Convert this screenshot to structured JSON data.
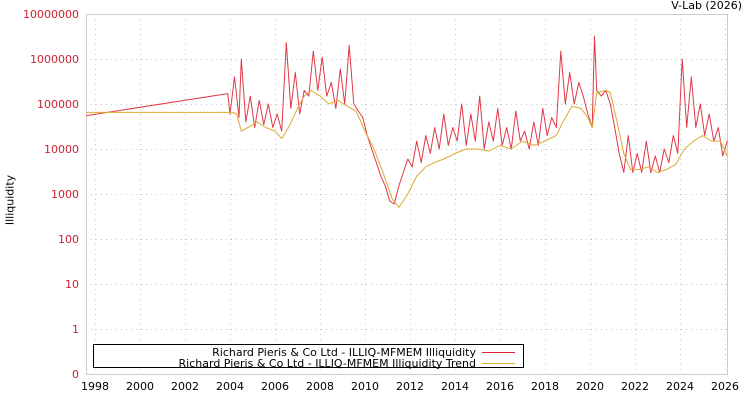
{
  "credit": "V-Lab (2026)",
  "y_axis_label": "Illiquidity",
  "legend": [
    {
      "label": "Richard Pieris & Co Ltd - ILLIQ-MFMEM Illiquidity",
      "color": "#dd2233"
    },
    {
      "label": "Richard Pieris & Co Ltd - ILLIQ-MFMEM Illiquidity Trend",
      "color": "#ddaa33"
    }
  ],
  "chart_data": {
    "type": "line",
    "title": "",
    "xlabel": "",
    "ylabel": "Illiquidity",
    "yscale": "log",
    "ylim": [
      0,
      10000000
    ],
    "xlim": [
      1997.6,
      2026.1
    ],
    "grid": true,
    "legend_position": "bottom-left inside",
    "y_ticks": [
      "0",
      "1",
      "10",
      "100",
      "1000",
      "10000",
      "100000",
      "1000000",
      "10000000"
    ],
    "x_ticks": [
      "1998",
      "2000",
      "2002",
      "2004",
      "2006",
      "2008",
      "2010",
      "2012",
      "2014",
      "2016",
      "2018",
      "2020",
      "2022",
      "2024",
      "2026"
    ],
    "series": [
      {
        "name": "Richard Pieris & Co Ltd - ILLIQ-MFMEM Illiquidity",
        "color": "#dd2233",
        "points": [
          [
            1997.6,
            55000
          ],
          [
            2003.9,
            170000
          ],
          [
            2004.0,
            60000
          ],
          [
            2004.2,
            400000
          ],
          [
            2004.4,
            50000
          ],
          [
            2004.5,
            1000000
          ],
          [
            2004.7,
            40000
          ],
          [
            2004.9,
            150000
          ],
          [
            2005.1,
            30000
          ],
          [
            2005.3,
            120000
          ],
          [
            2005.5,
            35000
          ],
          [
            2005.7,
            100000
          ],
          [
            2005.9,
            30000
          ],
          [
            2006.1,
            60000
          ],
          [
            2006.3,
            25000
          ],
          [
            2006.5,
            2300000
          ],
          [
            2006.7,
            80000
          ],
          [
            2006.9,
            500000
          ],
          [
            2007.1,
            60000
          ],
          [
            2007.3,
            200000
          ],
          [
            2007.5,
            150000
          ],
          [
            2007.7,
            1500000
          ],
          [
            2007.9,
            200000
          ],
          [
            2008.1,
            1100000
          ],
          [
            2008.3,
            150000
          ],
          [
            2008.5,
            300000
          ],
          [
            2008.7,
            80000
          ],
          [
            2008.9,
            600000
          ],
          [
            2009.1,
            100000
          ],
          [
            2009.3,
            2000000
          ],
          [
            2009.5,
            100000
          ],
          [
            2009.7,
            70000
          ],
          [
            2009.9,
            50000
          ],
          [
            2010.1,
            20000
          ],
          [
            2010.3,
            10000
          ],
          [
            2010.5,
            5000
          ],
          [
            2010.7,
            2500
          ],
          [
            2010.9,
            1500
          ],
          [
            2011.1,
            700
          ],
          [
            2011.3,
            600
          ],
          [
            2011.5,
            1500
          ],
          [
            2011.7,
            3000
          ],
          [
            2011.9,
            6000
          ],
          [
            2012.1,
            4000
          ],
          [
            2012.3,
            15000
          ],
          [
            2012.5,
            5000
          ],
          [
            2012.7,
            20000
          ],
          [
            2012.9,
            8000
          ],
          [
            2013.1,
            30000
          ],
          [
            2013.3,
            10000
          ],
          [
            2013.5,
            60000
          ],
          [
            2013.7,
            12000
          ],
          [
            2013.9,
            30000
          ],
          [
            2014.1,
            15000
          ],
          [
            2014.3,
            100000
          ],
          [
            2014.5,
            12000
          ],
          [
            2014.7,
            60000
          ],
          [
            2014.9,
            15000
          ],
          [
            2015.1,
            150000
          ],
          [
            2015.3,
            10000
          ],
          [
            2015.5,
            40000
          ],
          [
            2015.7,
            15000
          ],
          [
            2015.9,
            80000
          ],
          [
            2016.1,
            12000
          ],
          [
            2016.3,
            30000
          ],
          [
            2016.5,
            10000
          ],
          [
            2016.7,
            70000
          ],
          [
            2016.9,
            15000
          ],
          [
            2017.1,
            25000
          ],
          [
            2017.3,
            10000
          ],
          [
            2017.5,
            40000
          ],
          [
            2017.7,
            12000
          ],
          [
            2017.9,
            80000
          ],
          [
            2018.1,
            20000
          ],
          [
            2018.3,
            50000
          ],
          [
            2018.5,
            30000
          ],
          [
            2018.7,
            1500000
          ],
          [
            2018.9,
            100000
          ],
          [
            2019.1,
            500000
          ],
          [
            2019.3,
            100000
          ],
          [
            2019.5,
            300000
          ],
          [
            2019.7,
            150000
          ],
          [
            2019.9,
            60000
          ],
          [
            2020.1,
            30000
          ],
          [
            2020.2,
            3200000
          ],
          [
            2020.3,
            200000
          ],
          [
            2020.5,
            150000
          ],
          [
            2020.7,
            200000
          ],
          [
            2020.9,
            100000
          ],
          [
            2021.1,
            30000
          ],
          [
            2021.3,
            8000
          ],
          [
            2021.5,
            3000
          ],
          [
            2021.7,
            20000
          ],
          [
            2021.9,
            3000
          ],
          [
            2022.1,
            8000
          ],
          [
            2022.3,
            3000
          ],
          [
            2022.5,
            15000
          ],
          [
            2022.7,
            3000
          ],
          [
            2022.9,
            7000
          ],
          [
            2023.1,
            3000
          ],
          [
            2023.3,
            10000
          ],
          [
            2023.5,
            5000
          ],
          [
            2023.7,
            20000
          ],
          [
            2023.9,
            8000
          ],
          [
            2024.1,
            1000000
          ],
          [
            2024.3,
            30000
          ],
          [
            2024.5,
            400000
          ],
          [
            2024.7,
            30000
          ],
          [
            2024.9,
            100000
          ],
          [
            2025.1,
            20000
          ],
          [
            2025.3,
            60000
          ],
          [
            2025.5,
            15000
          ],
          [
            2025.7,
            30000
          ],
          [
            2025.9,
            7000
          ],
          [
            2026.1,
            15000
          ]
        ]
      },
      {
        "name": "Richard Pieris & Co Ltd - ILLIQ-MFMEM Illiquidity Trend",
        "color": "#ddaa33",
        "points": [
          [
            1997.6,
            65000
          ],
          [
            2004.1,
            65000
          ],
          [
            2004.3,
            60000
          ],
          [
            2004.5,
            25000
          ],
          [
            2004.8,
            30000
          ],
          [
            2005.2,
            40000
          ],
          [
            2005.6,
            30000
          ],
          [
            2006.0,
            25000
          ],
          [
            2006.3,
            17000
          ],
          [
            2006.6,
            30000
          ],
          [
            2007.0,
            80000
          ],
          [
            2007.3,
            150000
          ],
          [
            2007.6,
            200000
          ],
          [
            2008.0,
            150000
          ],
          [
            2008.4,
            100000
          ],
          [
            2008.8,
            120000
          ],
          [
            2009.2,
            90000
          ],
          [
            2009.6,
            70000
          ],
          [
            2010.0,
            25000
          ],
          [
            2010.4,
            10000
          ],
          [
            2010.8,
            3000
          ],
          [
            2011.2,
            800
          ],
          [
            2011.5,
            500
          ],
          [
            2011.9,
            1000
          ],
          [
            2012.3,
            2500
          ],
          [
            2012.7,
            4000
          ],
          [
            2013.1,
            5000
          ],
          [
            2013.5,
            6000
          ],
          [
            2014.0,
            8000
          ],
          [
            2014.5,
            10000
          ],
          [
            2015.0,
            10000
          ],
          [
            2015.5,
            9000
          ],
          [
            2016.0,
            12000
          ],
          [
            2016.5,
            10000
          ],
          [
            2017.0,
            15000
          ],
          [
            2017.5,
            12000
          ],
          [
            2018.0,
            15000
          ],
          [
            2018.5,
            20000
          ],
          [
            2018.8,
            40000
          ],
          [
            2019.2,
            90000
          ],
          [
            2019.6,
            80000
          ],
          [
            2019.9,
            50000
          ],
          [
            2020.1,
            30000
          ],
          [
            2020.3,
            180000
          ],
          [
            2020.7,
            200000
          ],
          [
            2020.9,
            180000
          ],
          [
            2021.2,
            40000
          ],
          [
            2021.5,
            8000
          ],
          [
            2021.8,
            3500
          ],
          [
            2022.2,
            3500
          ],
          [
            2022.6,
            4000
          ],
          [
            2023.0,
            3000
          ],
          [
            2023.4,
            3500
          ],
          [
            2023.8,
            4500
          ],
          [
            2024.2,
            10000
          ],
          [
            2024.6,
            15000
          ],
          [
            2025.0,
            20000
          ],
          [
            2025.4,
            15000
          ],
          [
            2025.8,
            15000
          ],
          [
            2026.1,
            7000
          ]
        ]
      }
    ]
  }
}
